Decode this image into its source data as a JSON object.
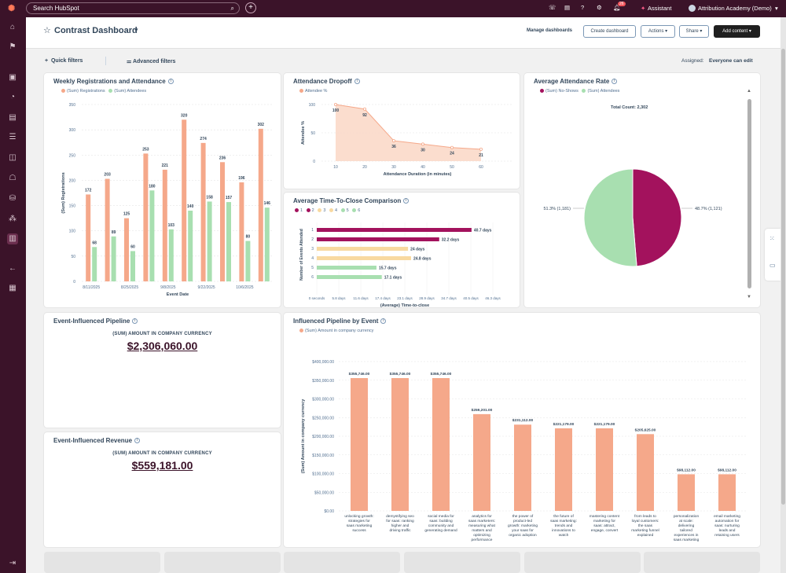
{
  "topbar": {
    "search_placeholder": "Search HubSpot",
    "assistant": "Assistant",
    "account": "Attribution Academy (Demo)",
    "notif_count": "26"
  },
  "header": {
    "title": "Contrast Dashboard",
    "manage": "Manage dashboards",
    "create": "Create dashboard",
    "actions": "Actions",
    "share": "Share",
    "add": "Add content"
  },
  "filters": {
    "quick": "Quick filters",
    "advanced": "Advanced filters",
    "assigned_label": "Assigned:",
    "assigned_value": "Everyone can edit"
  },
  "weekly": {
    "title": "Weekly Registrations and Attendance",
    "xlabel": "Event Date",
    "ylabel": "(Sum) Registrations",
    "legend": [
      "(Sum) Registrations",
      "(Sum) Attendees"
    ],
    "ticks": [
      "350",
      "300",
      "250",
      "200",
      "150",
      "100",
      "50",
      "0"
    ],
    "xticks": [
      "8/11/2025",
      "8/25/2025",
      "9/8/2025",
      "9/22/2025",
      "10/6/2025"
    ]
  },
  "dropoff": {
    "title": "Attendance Dropoff",
    "legend": "Attendee %",
    "xlabel": "Attendance Duration (in minutes)",
    "ylabel": "Attendee %",
    "yticks": [
      "100",
      "50",
      "0"
    ],
    "xticks": [
      "10",
      "20",
      "30",
      "40",
      "50",
      "60"
    ]
  },
  "attendance_rate": {
    "title": "Average Attendance Rate",
    "legend": [
      "(Sum) No-Shows",
      "(Sum) Attendees"
    ],
    "total": "Total Count: 2,302",
    "label_left": "51.3% (1,181)",
    "label_right": "48.7% (1,121)"
  },
  "ttc": {
    "title": "Average Time-To-Close Comparison",
    "legend": [
      "1",
      "2",
      "3",
      "4",
      "5",
      "6"
    ],
    "xlabel": "(Average) Time-to-close",
    "ylabel": "Number of Events Attended",
    "xticks": [
      "0 seconds",
      "5.8 days",
      "11.6 days",
      "17.4 days",
      "23.1 days",
      "28.9 days",
      "34.7 days",
      "40.5 days",
      "46.3 days"
    ]
  },
  "pipeline": {
    "title": "Event-Influenced Pipeline",
    "label": "(SUM) AMOUNT IN COMPANY CURRENCY",
    "value": "$2,306,060.00"
  },
  "revenue": {
    "title": "Event-Influenced Revenue",
    "label": "(SUM) AMOUNT IN COMPANY CURRENCY",
    "value": "$559,181.00"
  },
  "influenced": {
    "title": "Influenced Pipeline by Event",
    "legend": "(Sum) Amount in company currency",
    "xlabel": "Event Name",
    "ylabel": "(Sum) Amount in company currency",
    "yticks": [
      "$400,000.00",
      "$350,000.00",
      "$300,000.00",
      "$250,000.00",
      "$200,000.00",
      "$150,000.00",
      "$100,000.00",
      "$50,000.00",
      "$0.00"
    ]
  },
  "chart_data": [
    {
      "type": "bar",
      "title": "Weekly Registrations and Attendance",
      "categories": [
        "8/11/2025",
        "8/18/2025",
        "8/25/2025",
        "9/1/2025",
        "9/8/2025",
        "9/15/2025",
        "9/22/2025",
        "9/29/2025",
        "10/6/2025",
        "10/13/2025"
      ],
      "series": [
        {
          "name": "(Sum) Registrations",
          "values": [
            172,
            203,
            125,
            253,
            221,
            320,
            274,
            236,
            196,
            302
          ]
        },
        {
          "name": "(Sum) Attendees",
          "values": [
            68,
            89,
            60,
            180,
            103,
            140,
            158,
            157,
            80,
            146
          ]
        }
      ],
      "ylim": [
        0,
        350
      ],
      "colors": [
        "#f5a88a",
        "#a8dfb0"
      ]
    },
    {
      "type": "area",
      "title": "Attendance Dropoff",
      "x": [
        10,
        20,
        30,
        40,
        50,
        60
      ],
      "values": [
        100,
        92,
        36,
        30,
        24,
        21
      ],
      "ylim": [
        0,
        100
      ],
      "color": "#f5b79b"
    },
    {
      "type": "pie",
      "title": "Average Attendance Rate",
      "labels": [
        "(Sum) No-Shows",
        "(Sum) Attendees"
      ],
      "values": [
        1121,
        1181
      ],
      "colors": [
        "#a3125d",
        "#a8dfb0"
      ]
    },
    {
      "type": "bar",
      "title": "Average Time-To-Close Comparison",
      "categories": [
        "1",
        "2",
        "3",
        "4",
        "5",
        "6"
      ],
      "values": [
        40.7,
        32.2,
        24,
        24.8,
        15.7,
        17.1
      ],
      "labels": [
        "40.7 days",
        "32.2 days",
        "24 days",
        "24.8 days",
        "15.7 days",
        "17.1 days"
      ],
      "xlim": [
        0,
        46.3
      ],
      "colors": [
        "#a3125d",
        "#a3125d",
        "#f8d9a0",
        "#f8d9a0",
        "#a8dfb0",
        "#a8dfb0"
      ]
    },
    {
      "type": "bar",
      "title": "Influenced Pipeline by Event",
      "categories": [
        "unlocking growth: strategies for saas marketing success",
        "demystifying seo for saas: ranking higher and driving traffic",
        "social media for saas: building community and generating demand",
        "analytics for saas marketers: measuring what matters and optimizing performance",
        "the power of product-led growth: marketing your saas for organic adoption",
        "the future of saas marketing: trends and innovations to watch",
        "mastering content marketing for saas: attract, engage, convert",
        "from leads to loyal customers: the saas marketing funnel explained",
        "personalization at scale: delivering tailored experiences in saas marketing",
        "email marketing automation for saas: nurturing leads and retaining users"
      ],
      "values": [
        355746,
        355746,
        355746,
        259201,
        231112,
        221179,
        221179,
        205625,
        98112,
        98112
      ],
      "labels": [
        "$355,746.00",
        "$355,746.00",
        "$355,746.00",
        "$259,201.00",
        "$231,112.00",
        "$221,179.00",
        "$221,179.00",
        "$205,625.00",
        "$98,112.00",
        "$98,112.00"
      ],
      "ylim": [
        0,
        400000
      ],
      "color": "#f5a88a"
    }
  ]
}
